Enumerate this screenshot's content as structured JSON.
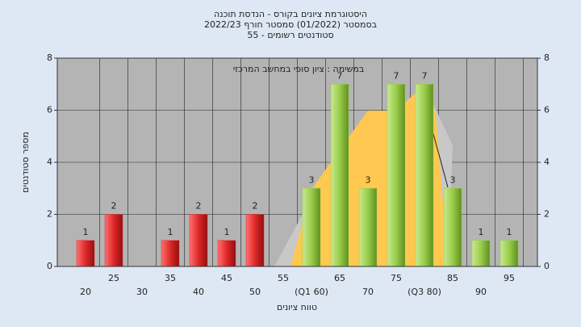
{
  "chart_data": {
    "type": "bar",
    "title": [
      "היסטוגרמת ציונים בקורס - הנדסת תוכנה",
      "בסמסטר  (01/2022)  סמסטר חורף 2022/23",
      "סטודנטים רשומים - 55"
    ],
    "annotation": "במשימה : ציון סופי במחשב המרכזי",
    "y_label": "מספר סטודנטים",
    "x_label": "טווח ציונים",
    "categories": [
      "20",
      "25",
      "30",
      "35",
      "40",
      "45",
      "50",
      "55",
      "(Q1 60)",
      "65",
      "70",
      "75",
      "(Q3 80)",
      "85",
      "90",
      "95"
    ],
    "values": [
      1,
      2,
      0,
      1,
      2,
      1,
      2,
      0,
      3,
      7,
      3,
      7,
      7,
      3,
      1,
      1
    ],
    "colors": [
      "#e03030",
      "#e03030",
      "#e03030",
      "#e03030",
      "#e03030",
      "#e03030",
      "#e03030",
      "#e03030",
      "#9acd4a",
      "#9acd4a",
      "#9acd4a",
      "#9acd4a",
      "#9acd4a",
      "#9acd4a",
      "#9acd4a",
      "#9acd4a"
    ],
    "ylim": [
      0,
      8
    ],
    "yticks": [
      0,
      2,
      4,
      6,
      8
    ],
    "y2lim": [
      0,
      8
    ],
    "y2ticks": [
      0,
      2,
      4,
      6,
      8
    ],
    "grid": true
  }
}
